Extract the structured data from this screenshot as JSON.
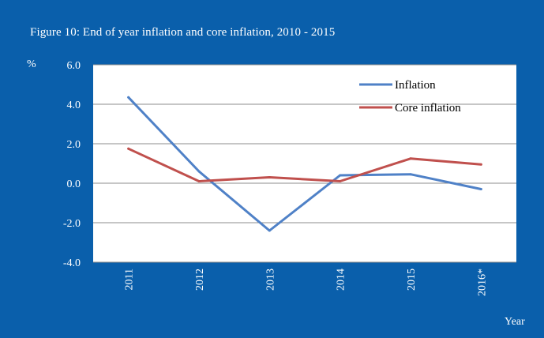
{
  "chart_data": {
    "type": "line",
    "title": "Figure 10: End of year inflation and core inflation, 2010 - 2015",
    "ylabel": "%",
    "xlabel": "Year",
    "categories": [
      "2011",
      "2012",
      "2013",
      "2014",
      "2015",
      "2016*"
    ],
    "ylim": [
      -4.0,
      6.0
    ],
    "yticks": [
      "6.0",
      "4.0",
      "2.0",
      "0.0",
      "-2.0",
      "-4.0"
    ],
    "grid": true,
    "legend_position": "top-right",
    "series": [
      {
        "name": "Inflation",
        "color": "#4f81c7",
        "values": [
          4.35,
          0.6,
          -2.4,
          0.4,
          0.45,
          -0.3
        ]
      },
      {
        "name": "Core inflation",
        "color": "#c0504d",
        "values": [
          1.75,
          0.1,
          0.3,
          0.1,
          1.25,
          0.95
        ]
      }
    ]
  }
}
